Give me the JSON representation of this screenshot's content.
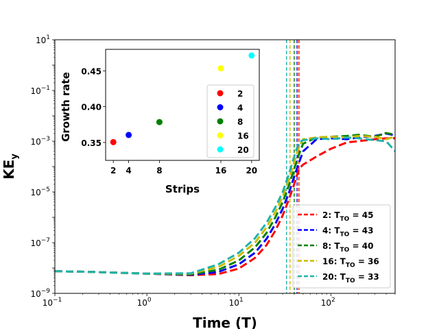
{
  "chart_data": [
    {
      "type": "line",
      "xlabel": "Time (T)",
      "ylabel": "KE",
      "ylabel_sub": "y",
      "xscale": "log",
      "yscale": "log",
      "xlim": [
        0.1,
        500
      ],
      "ylim": [
        1e-09,
        10
      ],
      "x_ticks": [
        {
          "value": 0.1,
          "base": "10",
          "exp": "−1"
        },
        {
          "value": 1,
          "base": "10",
          "exp": "0"
        },
        {
          "value": 10,
          "base": "10",
          "exp": "1"
        },
        {
          "value": 100,
          "base": "10",
          "exp": "2"
        }
      ],
      "y_ticks": [
        {
          "value": 1e-09,
          "base": "10",
          "exp": "−9"
        },
        {
          "value": 1e-07,
          "base": "10",
          "exp": "−7"
        },
        {
          "value": 1e-05,
          "base": "10",
          "exp": "−5"
        },
        {
          "value": 0.001,
          "base": "10",
          "exp": "−3"
        },
        {
          "value": 0.1,
          "base": "10",
          "exp": "−1"
        },
        {
          "value": 10,
          "base": "10",
          "exp": "1"
        }
      ],
      "legend_position": "lower-right",
      "series": [
        {
          "name": "2: T",
          "name_sub": "TO",
          "name_suffix": " = 45",
          "color": "#ff0000",
          "vline_x": 45,
          "x": [
            0.1,
            0.3,
            1,
            3,
            6,
            10,
            15,
            20,
            25,
            30,
            35,
            40,
            45,
            50,
            70,
            100,
            150,
            200,
            300,
            400,
            500
          ],
          "y": [
            7.5e-09,
            6.9e-09,
            6e-09,
            5.2e-09,
            5.8e-09,
            9.5e-09,
            2.5e-08,
            8e-08,
            3e-07,
            1.2e-06,
            5e-06,
            2e-05,
            8e-05,
            0.00012,
            0.00025,
            0.0005,
            0.0009,
            0.001,
            0.0012,
            0.0013,
            0.0013
          ]
        },
        {
          "name": "4: T",
          "name_sub": "TO",
          "name_suffix": " = 43",
          "color": "#0000ff",
          "vline_x": 43,
          "x": [
            0.1,
            0.3,
            1,
            3,
            6,
            10,
            15,
            20,
            25,
            30,
            35,
            40,
            45,
            50,
            70,
            100,
            150,
            200,
            300,
            400,
            500
          ],
          "y": [
            7.5e-09,
            6.9e-09,
            6e-09,
            5.4e-09,
            7e-09,
            1.4e-08,
            4e-08,
            1.4e-07,
            5.5e-07,
            2.2e-06,
            9e-06,
            4e-05,
            0.00014,
            0.0004,
            0.0012,
            0.0013,
            0.0012,
            0.0014,
            0.0016,
            0.002,
            0.0017
          ]
        },
        {
          "name": "8: T",
          "name_sub": "TO",
          "name_suffix": " = 40",
          "color": "#008000",
          "vline_x": 40,
          "x": [
            0.1,
            0.3,
            1,
            3,
            6,
            10,
            15,
            20,
            25,
            30,
            35,
            40,
            45,
            50,
            70,
            100,
            150,
            200,
            300,
            400,
            500
          ],
          "y": [
            7.5e-09,
            6.9e-09,
            6e-09,
            5.6e-09,
            8.5e-09,
            2e-08,
            6.5e-08,
            2.4e-07,
            1e-06,
            4e-06,
            1.8e-05,
            8e-05,
            0.0003,
            0.0008,
            0.0014,
            0.0015,
            0.0016,
            0.0018,
            0.0015,
            0.0021,
            0.0018
          ]
        },
        {
          "name": "16: T",
          "name_sub": "TO",
          "name_suffix": " = 36",
          "color": "#ccbb00",
          "vline_x": 36,
          "x": [
            0.1,
            0.3,
            1,
            3,
            6,
            10,
            15,
            20,
            25,
            30,
            35,
            40,
            45,
            50,
            70,
            100,
            150,
            200,
            300,
            400,
            500
          ],
          "y": [
            7.5e-09,
            6.9e-09,
            6e-09,
            6e-09,
            1.1e-08,
            3e-08,
            1e-07,
            4e-07,
            1.6e-06,
            6.5e-06,
            3e-05,
            0.00015,
            0.0006,
            0.0012,
            0.0014,
            0.0015,
            0.0014,
            0.0016,
            0.0015,
            0.0012,
            0.0015
          ]
        },
        {
          "name": "20: T",
          "name_sub": "TO",
          "name_suffix": " = 33",
          "color": "#20b2aa",
          "vline_x": 33,
          "x": [
            0.1,
            0.3,
            1,
            3,
            6,
            10,
            15,
            20,
            25,
            30,
            35,
            40,
            45,
            50,
            70,
            100,
            150,
            200,
            300,
            400,
            500
          ],
          "y": [
            7.5e-09,
            6.9e-09,
            6e-09,
            6.2e-09,
            1.4e-08,
            4e-08,
            1.5e-07,
            6e-07,
            2.5e-06,
            1e-05,
            5e-05,
            0.00025,
            0.0009,
            0.0011,
            0.0013,
            0.0012,
            0.0014,
            0.0013,
            0.0011,
            0.001,
            0.0004
          ]
        }
      ]
    },
    {
      "type": "scatter",
      "xlabel": "Strips",
      "ylabel": "Growth rate",
      "xlim": [
        1.0,
        21.0
      ],
      "ylim": [
        0.325,
        0.48
      ],
      "x_ticks": [
        "2",
        "4",
        "8",
        "16",
        "20"
      ],
      "y_ticks": [
        "0.35",
        "0.40",
        "0.45"
      ],
      "legend_position": "lower-right",
      "points": [
        {
          "x": 2,
          "y": 0.3505,
          "label": "2",
          "color": "#ff0000"
        },
        {
          "x": 4,
          "y": 0.3605,
          "label": "4",
          "color": "#0000ff"
        },
        {
          "x": 8,
          "y": 0.3785,
          "label": "8",
          "color": "#008000"
        },
        {
          "x": 16,
          "y": 0.4535,
          "label": "16",
          "color": "#ffff00"
        },
        {
          "x": 20,
          "y": 0.4715,
          "label": "20",
          "color": "#00ffff"
        }
      ]
    }
  ]
}
